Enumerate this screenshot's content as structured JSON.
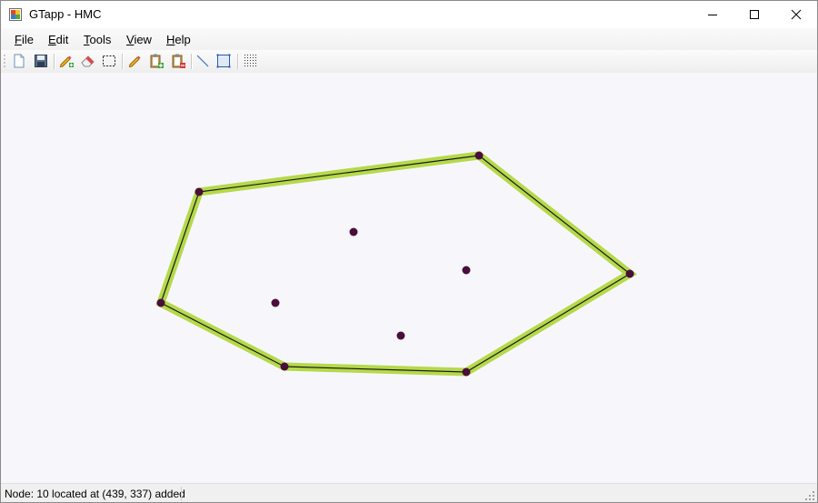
{
  "window": {
    "title": "GTapp - HMC",
    "icon": "app-window-icon",
    "controls": [
      "minimize-icon",
      "maximize-icon",
      "close-icon"
    ]
  },
  "menu": {
    "items": [
      {
        "label": "File",
        "accel": "F",
        "rest": "ile"
      },
      {
        "label": "Edit",
        "accel": "E",
        "rest": "dit"
      },
      {
        "label": "Tools",
        "accel": "T",
        "rest": "ools"
      },
      {
        "label": "View",
        "accel": "V",
        "rest": "iew"
      },
      {
        "label": "Help",
        "accel": "H",
        "rest": "elp"
      }
    ]
  },
  "toolbar": {
    "buttons": [
      "new-document-icon",
      "save-icon",
      "pencil-add-icon",
      "eraser-icon",
      "select-rectangle-icon",
      "pencil-icon",
      "clipboard-add-icon",
      "clipboard-remove-icon",
      "line-tool-icon",
      "frame-tool-icon",
      "grid-dots-icon"
    ]
  },
  "canvas": {
    "colors": {
      "background": "#f7f7fb",
      "hull_highlight": "#b5d94a",
      "edge": "#1a1a1a",
      "node": "#4a0e3a"
    }
  },
  "status": {
    "message": "Node: 10 located at (439, 337) added"
  }
}
